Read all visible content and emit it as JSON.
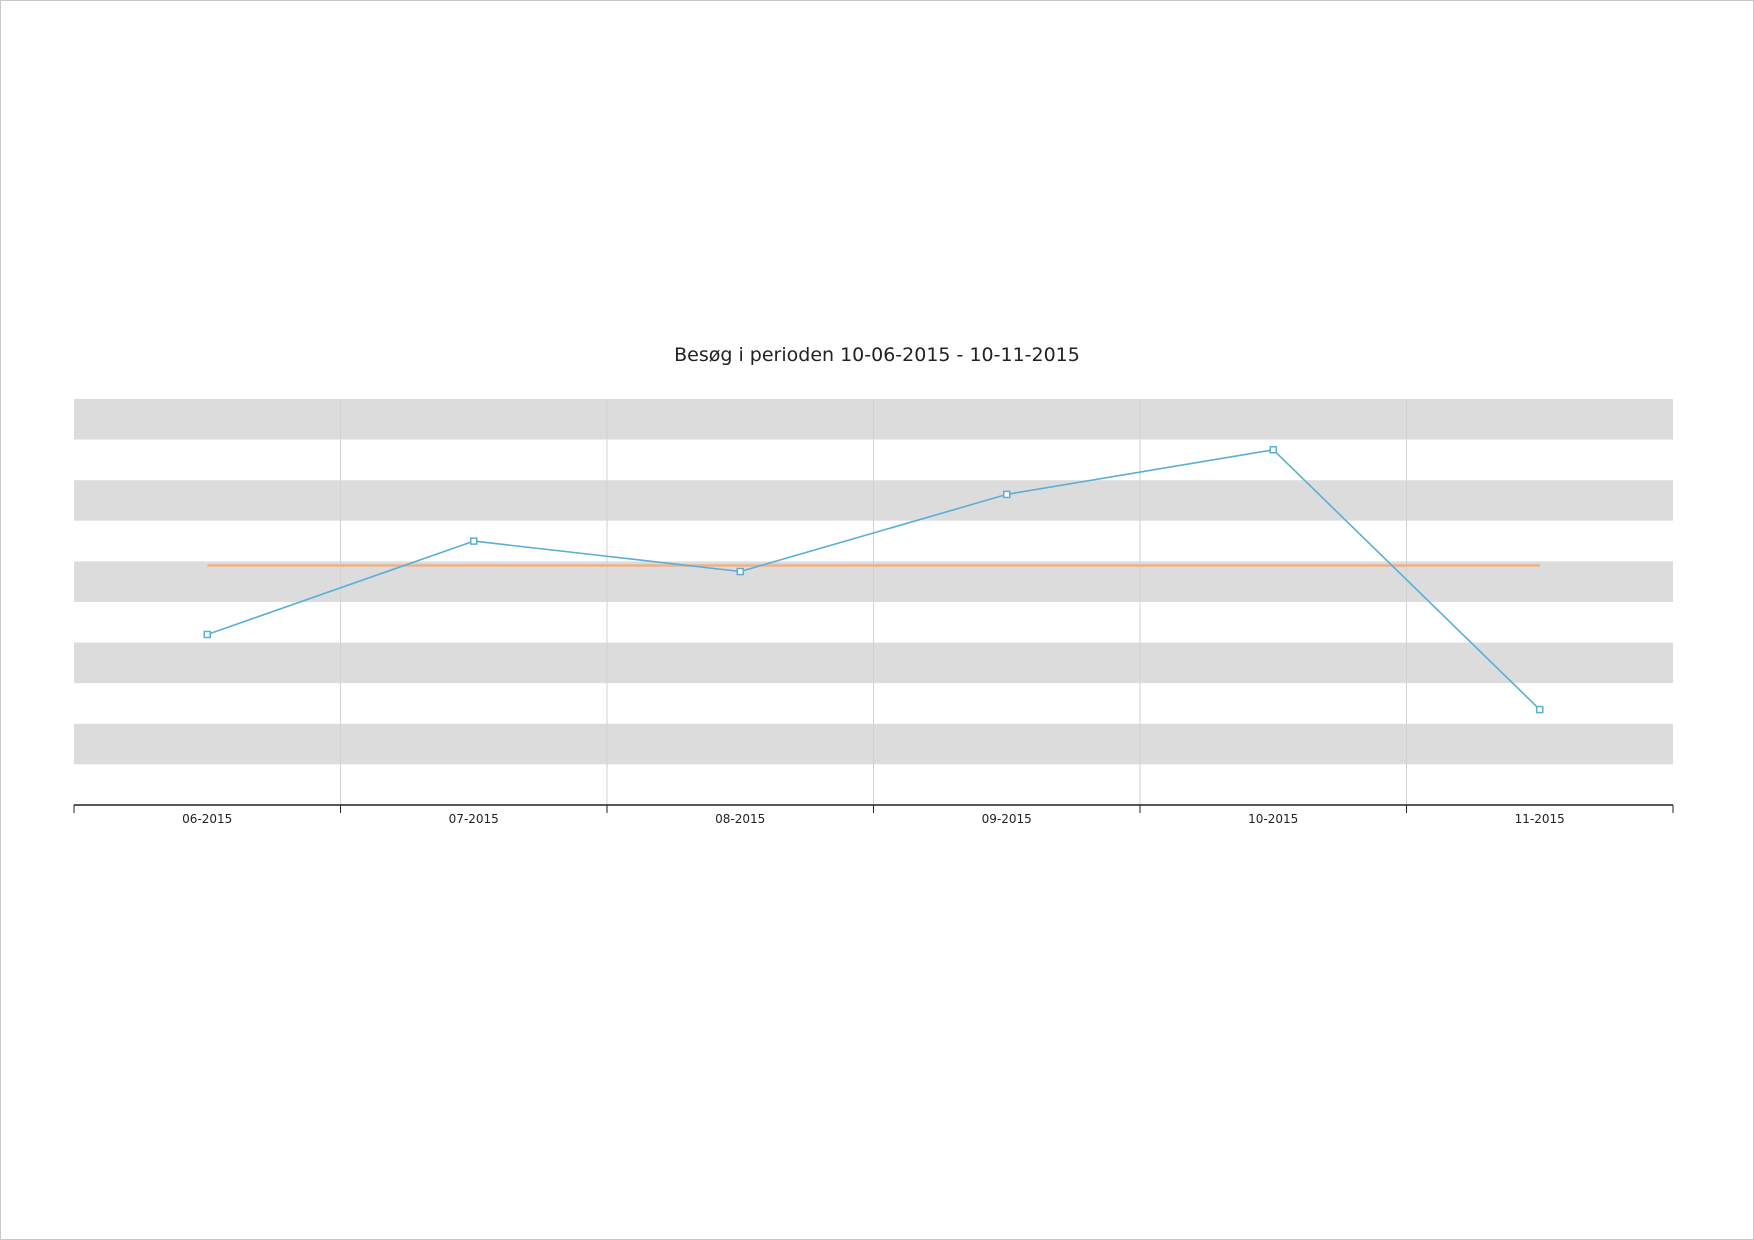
{
  "chart_data": {
    "type": "line",
    "title": "Besøg i perioden 10-06-2015 - 10-11-2015",
    "categories": [
      "06-2015",
      "07-2015",
      "08-2015",
      "09-2015",
      "10-2015",
      "11-2015"
    ],
    "series": [
      {
        "values": [
          42,
          65,
          57.5,
          76.5,
          87.5,
          23.5
        ],
        "color": "#5aafd6"
      },
      {
        "values": [
          59,
          59,
          59,
          59,
          59,
          59
        ],
        "color": "#f0b08a"
      }
    ],
    "ylim": [
      0,
      100
    ],
    "band_colors": [
      "#dcdcdc",
      "#ffffff"
    ],
    "grid": true
  }
}
